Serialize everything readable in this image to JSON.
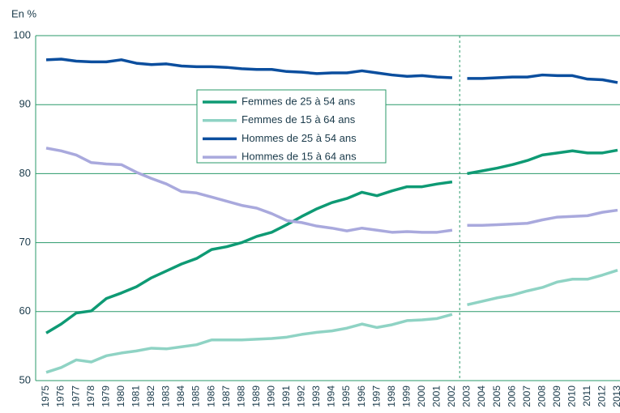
{
  "chart_data": {
    "type": "line",
    "y_label": "En %",
    "categories": [
      "1975",
      "1976",
      "1977",
      "1978",
      "1979",
      "1980",
      "1981",
      "1982",
      "1983",
      "1984",
      "1985",
      "1986",
      "1987",
      "1988",
      "1989",
      "1990",
      "1991",
      "1992",
      "1993",
      "1994",
      "1995",
      "1996",
      "1997",
      "1998",
      "1999",
      "2000",
      "2001",
      "2002",
      "2003",
      "2004",
      "2005",
      "2006",
      "2007",
      "2008",
      "2009",
      "2010",
      "2011",
      "2012",
      "2013"
    ],
    "break_after": "2002",
    "series": [
      {
        "name": "Femmes de 25 à 54 ans",
        "color": "#0e9a74",
        "values": [
          56.9,
          58.2,
          59.8,
          60.1,
          61.9,
          62.7,
          63.6,
          64.9,
          65.9,
          66.9,
          67.7,
          69.0,
          69.4,
          70.0,
          70.9,
          71.5,
          72.6,
          73.8,
          74.9,
          75.8,
          76.4,
          77.3,
          76.8,
          77.5,
          78.1,
          78.1,
          78.5,
          78.8,
          80.0,
          80.4,
          80.8,
          81.3,
          81.9,
          82.7,
          83.0,
          83.3,
          83.0,
          83.0,
          83.4
        ]
      },
      {
        "name": "Femmes de 15 à 64 ans",
        "color": "#8fd3c4",
        "values": [
          51.2,
          51.9,
          53.0,
          52.7,
          53.6,
          54.0,
          54.3,
          54.7,
          54.6,
          54.9,
          55.2,
          55.9,
          55.9,
          55.9,
          56.0,
          56.1,
          56.3,
          56.7,
          57.0,
          57.2,
          57.6,
          58.2,
          57.7,
          58.1,
          58.7,
          58.8,
          59.0,
          59.6,
          61.0,
          61.5,
          62.0,
          62.4,
          63.0,
          63.5,
          64.3,
          64.7,
          64.7,
          65.3,
          66.0
        ]
      },
      {
        "name": "Hommes de 25 à 54 ans",
        "color": "#0b4e9e",
        "values": [
          96.5,
          96.6,
          96.3,
          96.2,
          96.2,
          96.5,
          96.0,
          95.8,
          95.9,
          95.6,
          95.5,
          95.5,
          95.4,
          95.2,
          95.1,
          95.1,
          94.8,
          94.7,
          94.5,
          94.6,
          94.6,
          94.9,
          94.6,
          94.3,
          94.1,
          94.2,
          94.0,
          93.9,
          93.8,
          93.8,
          93.9,
          94.0,
          94.0,
          94.3,
          94.2,
          94.2,
          93.7,
          93.6,
          93.2
        ]
      },
      {
        "name": "Hommes de 15 à 64 ans",
        "color": "#a9a9dd",
        "values": [
          83.7,
          83.3,
          82.7,
          81.6,
          81.4,
          81.3,
          80.2,
          79.3,
          78.5,
          77.4,
          77.2,
          76.6,
          76.0,
          75.4,
          75.0,
          74.2,
          73.2,
          72.9,
          72.4,
          72.1,
          71.7,
          72.1,
          71.8,
          71.5,
          71.6,
          71.5,
          71.5,
          71.8,
          72.5,
          72.5,
          72.6,
          72.7,
          72.8,
          73.3,
          73.7,
          73.8,
          73.9,
          74.4,
          74.7
        ]
      }
    ],
    "ylim": [
      50,
      100
    ],
    "yticks": [
      50,
      60,
      70,
      80,
      90,
      100
    ],
    "grid": true,
    "axis_color": "#2a9a6a"
  }
}
